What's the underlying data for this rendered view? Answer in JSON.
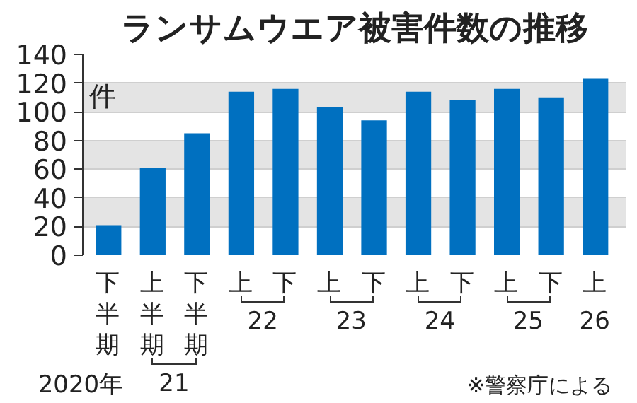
{
  "chart_data": {
    "type": "bar",
    "title": "ランサムウエア被害件数の推移",
    "ylabel": "件",
    "categories": [
      "下半期",
      "上半期",
      "下半期",
      "上",
      "下",
      "上",
      "下",
      "上",
      "下",
      "上",
      "下",
      "上"
    ],
    "values": [
      21,
      61,
      85,
      114,
      116,
      103,
      94,
      114,
      108,
      116,
      110,
      123
    ],
    "color": "#0070c0",
    "ylim": [
      0,
      140
    ],
    "yticks": [
      0,
      20,
      40,
      60,
      80,
      100,
      120,
      140
    ],
    "grid": "y",
    "annotations": [
      "2020年",
      "21",
      "22",
      "23",
      "24",
      "25",
      "26",
      "※警察庁による"
    ]
  }
}
